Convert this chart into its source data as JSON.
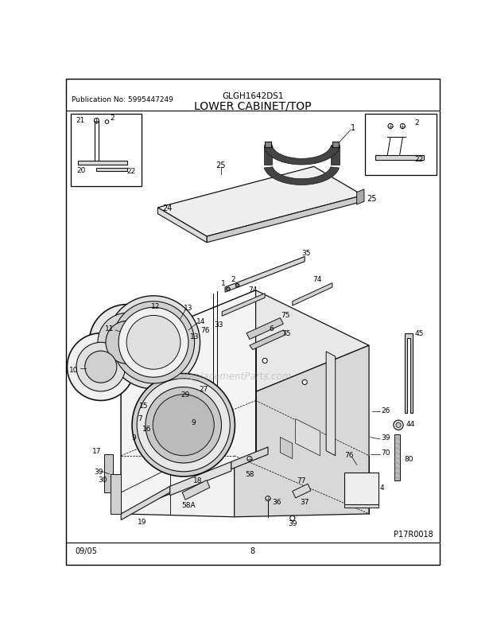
{
  "title": "LOWER CABINET/TOP",
  "model": "GLGH1642DS1",
  "publication": "Publication No: 5995447249",
  "date_code": "09/05",
  "page_number": "8",
  "diagram_ref": "P17R0018",
  "watermark": "eReplacementParts.com",
  "bg_color": "#ffffff",
  "border_color": "#000000",
  "fig_width": 6.2,
  "fig_height": 8.03,
  "dpi": 100
}
